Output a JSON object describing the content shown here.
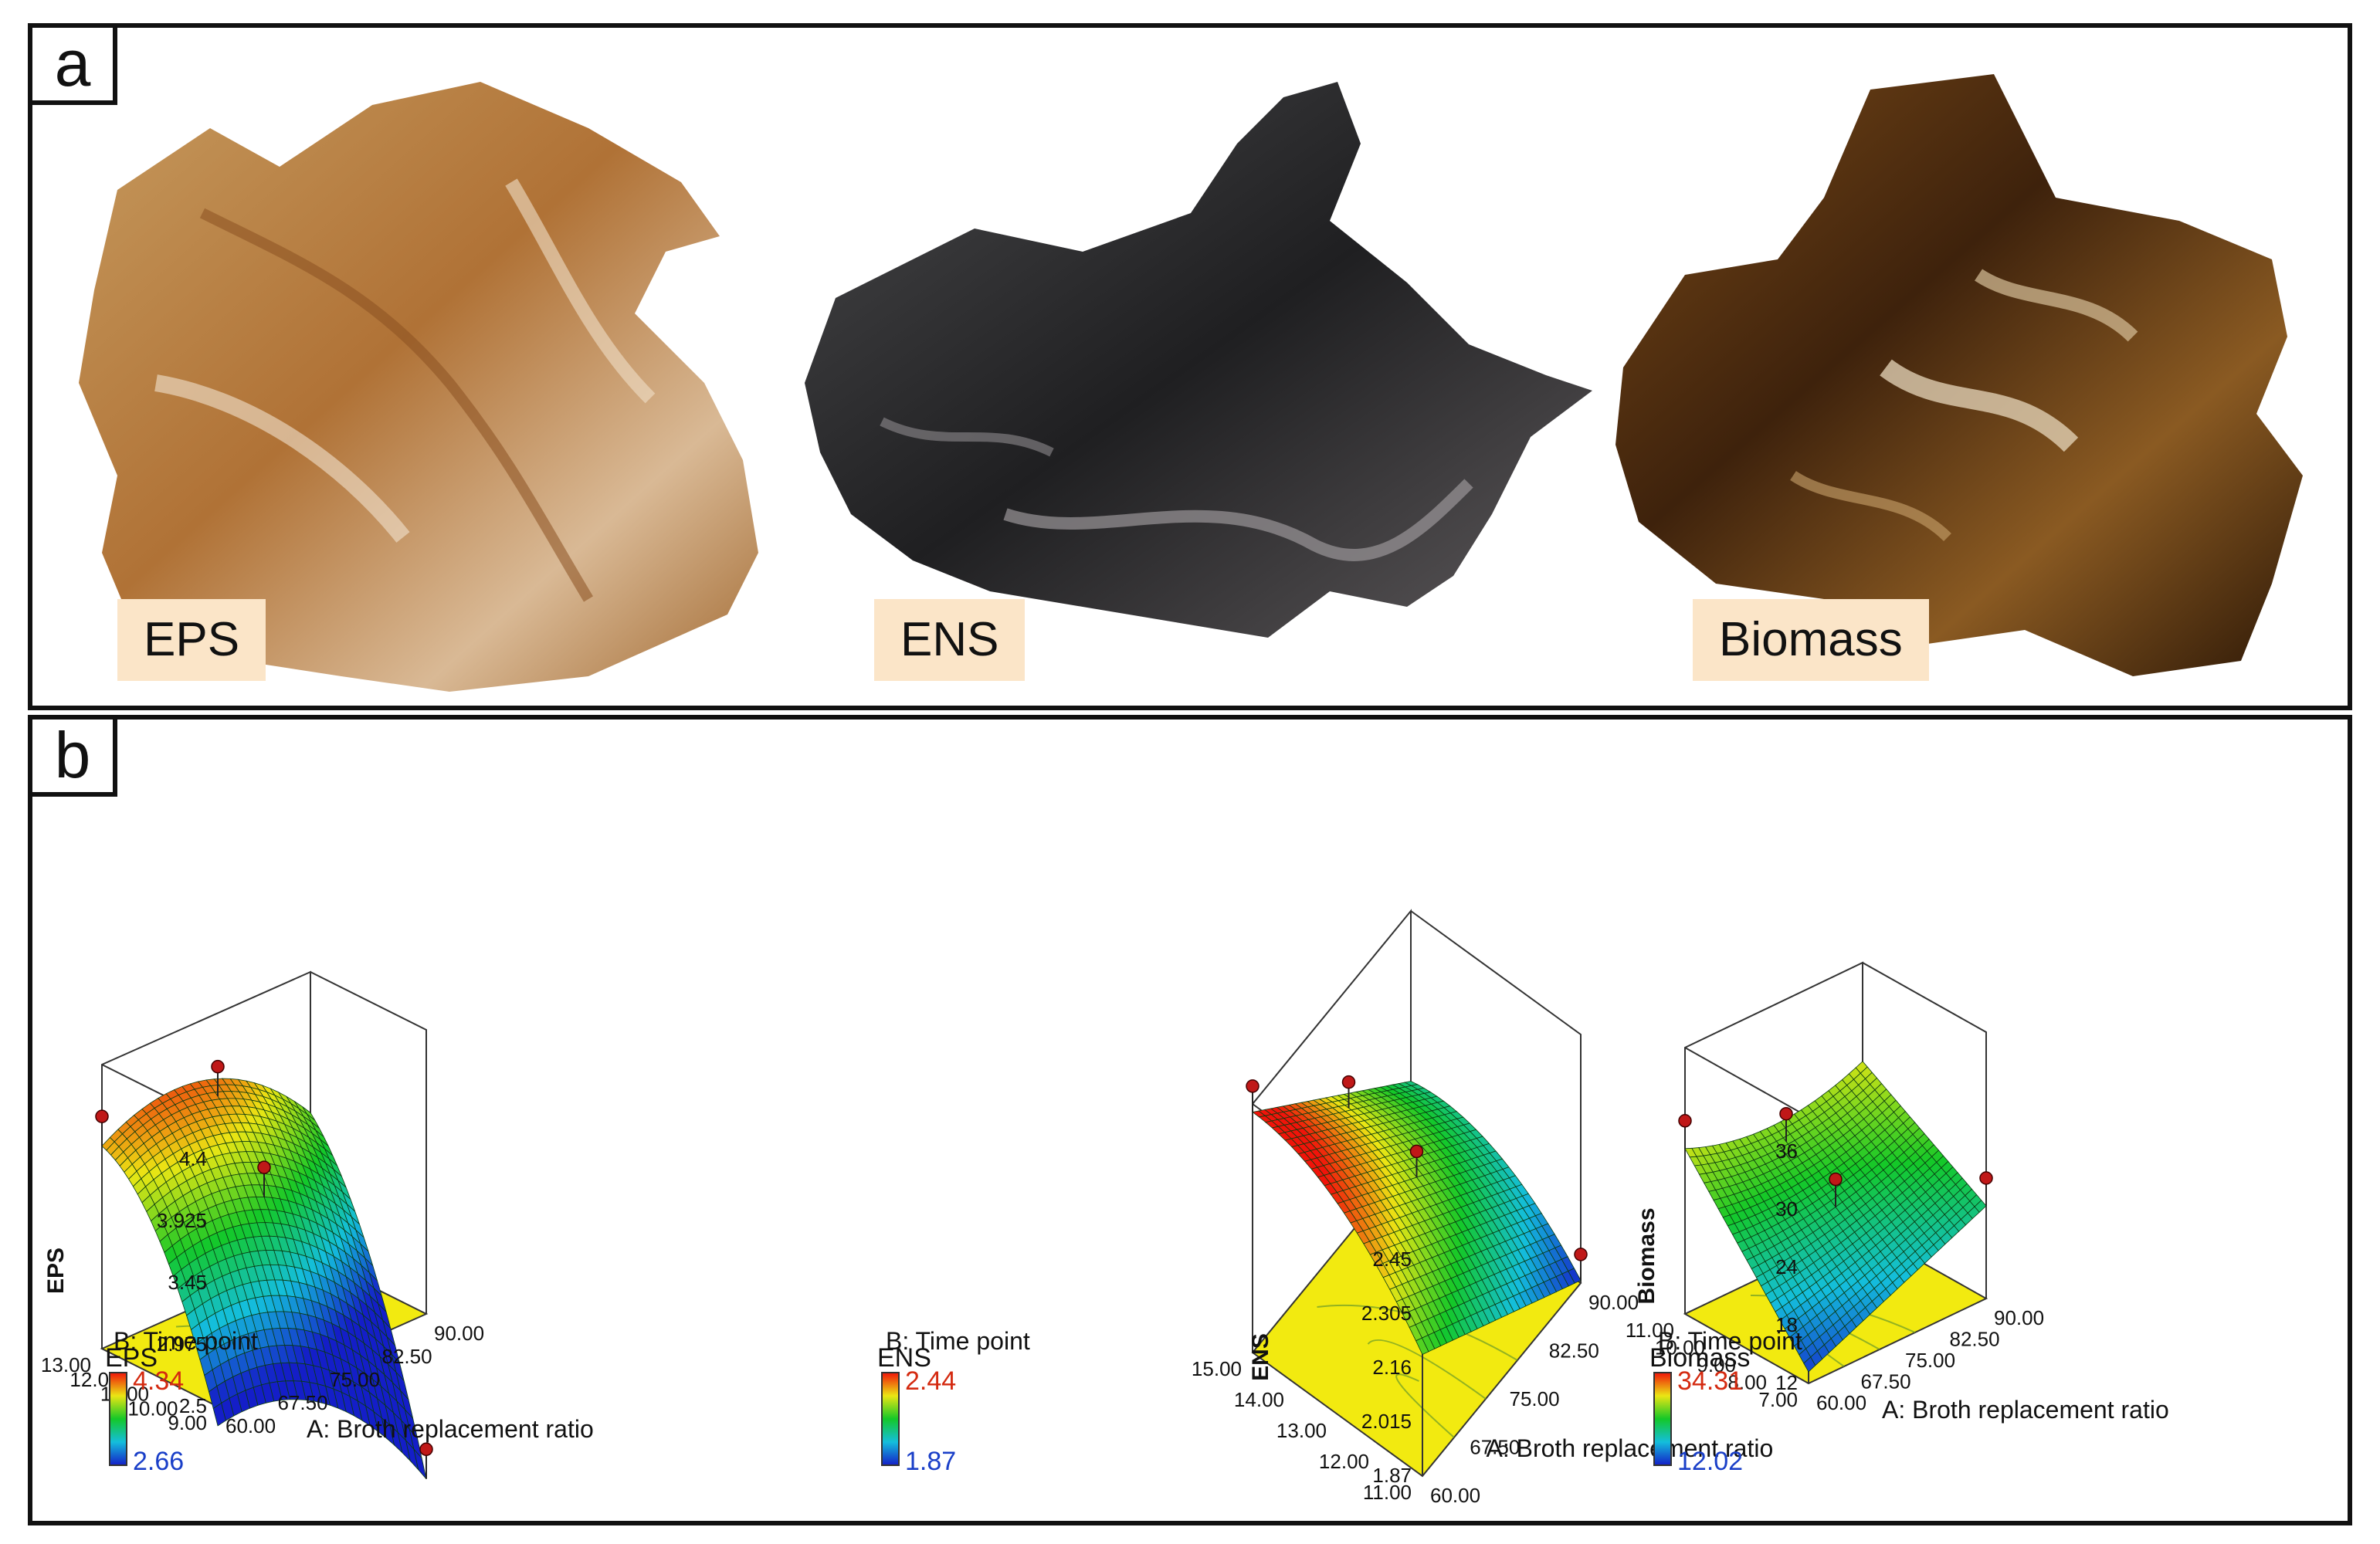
{
  "panel_a": {
    "letter": "a",
    "samples": [
      {
        "label": "EPS",
        "color": "#b47a3e"
      },
      {
        "label": "ENS",
        "color": "#2b2b2d"
      },
      {
        "label": "Biomass",
        "color": "#5a3210"
      }
    ]
  },
  "panel_b": {
    "letter": "b"
  },
  "chart_data": [
    {
      "type": "surface",
      "zlabel": "EPS",
      "xlabel": "A: Broth replacement ratio",
      "ylabel": "B: Time point",
      "x_ticks": [
        "60.00",
        "67.50",
        "75.00",
        "82.50",
        "90.00"
      ],
      "y_ticks": [
        "9.00",
        "10.00",
        "11.00",
        "12.00",
        "13.00"
      ],
      "z_ticks": [
        "2.5",
        "2.975",
        "3.45",
        "3.925",
        "4.4"
      ],
      "xlim": [
        60,
        90
      ],
      "ylim": [
        9,
        13
      ],
      "zlim": [
        2.5,
        4.4
      ],
      "colorbar": {
        "title": "EPS",
        "max": "4.34",
        "min": "2.66"
      }
    },
    {
      "type": "surface",
      "zlabel": "ENS",
      "xlabel": "A: Broth replacement ratio",
      "ylabel": "B: Time point",
      "x_ticks": [
        "60.00",
        "67.50",
        "75.00",
        "82.50",
        "90.00"
      ],
      "y_ticks": [
        "11.00",
        "12.00",
        "13.00",
        "14.00",
        "15.00"
      ],
      "z_ticks": [
        "1.87",
        "2.015",
        "2.16",
        "2.305",
        "2.45"
      ],
      "xlim": [
        60,
        90
      ],
      "ylim": [
        11,
        15
      ],
      "zlim": [
        1.87,
        2.45
      ],
      "colorbar": {
        "title": "ENS",
        "max": "2.44",
        "min": "1.87"
      }
    },
    {
      "type": "surface",
      "zlabel": "Biomass",
      "xlabel": "A: Broth replacement ratio",
      "ylabel": "B: Time point",
      "x_ticks": [
        "60.00",
        "67.50",
        "75.00",
        "82.50",
        "90.00"
      ],
      "y_ticks": [
        "7.00",
        "8.00",
        "9.00",
        "10.00",
        "11.00"
      ],
      "z_ticks": [
        "12",
        "18",
        "24",
        "30",
        "36"
      ],
      "xlim": [
        60,
        90
      ],
      "ylim": [
        7,
        11
      ],
      "zlim": [
        12,
        36
      ],
      "colorbar": {
        "title": "Biomass",
        "max": "34.31",
        "min": "12.02"
      }
    }
  ]
}
